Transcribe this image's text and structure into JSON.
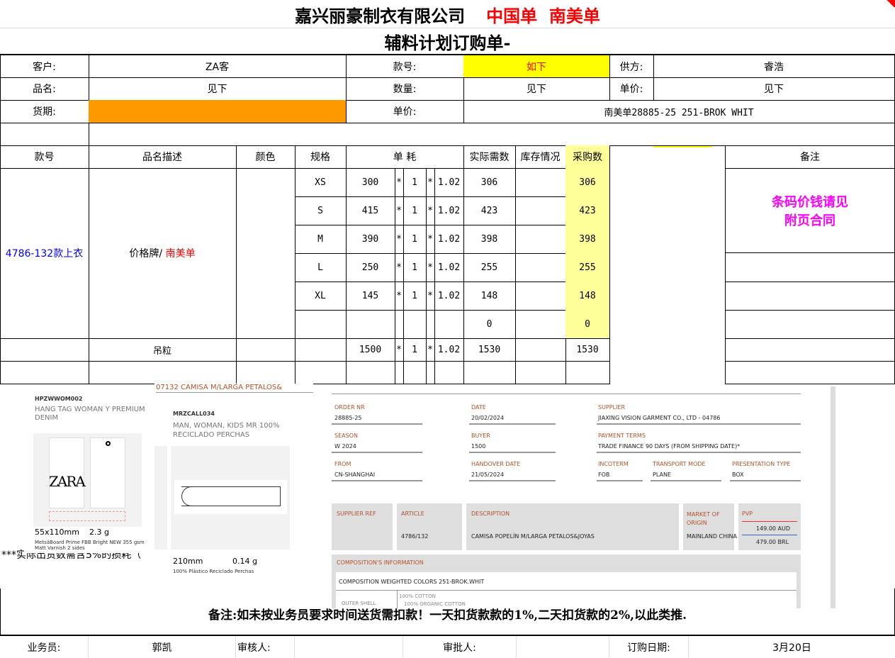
{
  "title": {
    "company": "嘉兴丽豪制衣有限公司",
    "tags": "中国单  南美单",
    "subtitle": "辅料计划订购单-"
  },
  "info": {
    "customer_label": "客户:",
    "customer": "ZA客",
    "style_label": "款号:",
    "style": "如下",
    "supplier_label": "供方:",
    "supplier": "睿浩",
    "product_label": "品名:",
    "product": "见下",
    "qty_label": "数量:",
    "qty": "见下",
    "price_label": "单价:",
    "price": "见下",
    "delivery_label": "货期:",
    "price2_label": "单价:",
    "price2": "南美单28885-25 251-BROK WHIT"
  },
  "colors": {
    "yellow": "#ffff00",
    "orange": "#ff9900",
    "light_yellow": "#ffff99",
    "red": "#ff0000",
    "blue": "#0000ff",
    "magenta": "#ff00ff"
  },
  "table": {
    "headers": {
      "style": "款号",
      "desc": "品名描述",
      "color": "颜色",
      "size": "规格",
      "usage": "单 耗",
      "actual": "实际需数",
      "stock": "库存情况",
      "purchase": "采购数",
      "remark": "备注"
    },
    "style_no": "4786-132款上衣",
    "desc_main": "价格牌/ ",
    "desc_red": "南美单",
    "remark_note": "条码价钱请见\n附页合同",
    "rows": [
      {
        "size": "XS",
        "qty": "300",
        "m1": "*",
        "f": "1",
        "m2": "*",
        "loss": "1.02",
        "actual": "306",
        "purchase": "306"
      },
      {
        "size": "S",
        "qty": "415",
        "m1": "*",
        "f": "1",
        "m2": "*",
        "loss": "1.02",
        "actual": "423",
        "purchase": "423"
      },
      {
        "size": "M",
        "qty": "390",
        "m1": "*",
        "f": "1",
        "m2": "*",
        "loss": "1.02",
        "actual": "398",
        "purchase": "398"
      },
      {
        "size": "L",
        "qty": "250",
        "m1": "*",
        "f": "1",
        "m2": "*",
        "loss": "1.02",
        "actual": "255",
        "purchase": "255"
      },
      {
        "size": "XL",
        "qty": "145",
        "m1": "*",
        "f": "1",
        "m2": "*",
        "loss": "1.02",
        "actual": "148",
        "purchase": "148"
      },
      {
        "size": "",
        "qty": "",
        "m1": "",
        "f": "",
        "m2": "",
        "loss": "",
        "actual": "0",
        "purchase": "0"
      }
    ],
    "extra": {
      "desc": "吊粒",
      "qty": "1500",
      "m1": "*",
      "f": "1",
      "m2": "*",
      "loss": "1.02",
      "actual": "1530",
      "purchase": "1530"
    }
  },
  "hidden_note": "***实际出货数需含5%的损耗（",
  "hangtag": {
    "code": "HPZWWOM002",
    "name": "HANG TAG WOMAN Y PREMIUM DENIM",
    "logo": "ZARA",
    "size": "55x110mm",
    "weight": "2.3 g",
    "material": "MetsäBoard Prime FBB Bright NEW 355 gsm Matt Varnish 2 sides"
  },
  "hanger": {
    "header": "07132 CAMISA M/LARGA PETALOS&",
    "code": "MRZCALL034",
    "name": "MAN, WOMAN, KIDS MR 100% RECICLADO PERCHAS",
    "size": "210mm",
    "weight": "0.14 g",
    "material": "100% Plástico Reciclado Perchas"
  },
  "order": {
    "order_nr_label": "ORDER NR",
    "order_nr": "28885-25",
    "date_label": "DATE",
    "date": "20/02/2024",
    "supplier_label": "SUPPLIER",
    "supplier": "JIAXING VISION GARMENT CO., LTD - 04786",
    "season_label": "SEASON",
    "season": "W 2024",
    "buyer_label": "BUYER",
    "buyer": "1500",
    "payment_label": "PAYMENT TERMS",
    "payment": "TRADE FINANCE 90 DAYS (FROM SHIPPING DATE)*",
    "from_label": "FROM",
    "from": "CN-SHANGHAI",
    "handover_label": "HANDOVER DATE",
    "handover": "21/05/2024",
    "incoterm_label": "INCOTERM",
    "incoterm": "FOB",
    "transport_label": "TRANSPORT MODE",
    "transport": "PLANE",
    "presentation_label": "PRESENTATION TYPE",
    "presentation": "BOX",
    "supref_label": "SUPPLIER REF",
    "article_label": "ARTICLE",
    "article": "4786/132",
    "desc_label": "DESCRIPTION",
    "desc": "CAMISA POPELÍN M/LARGA PETALOS&JOYAS",
    "market_label": "MARKET OF ORIGIN",
    "market": "MAINLAND CHINA",
    "pvp_label": "PVP",
    "pvp1": "149.00 AUD",
    "pvp2": "479.00 BRL",
    "comp_label": "COMPOSITION'S INFORMATION",
    "comp_weighted": "COMPOSITION WEIGHTED COLORS 251-BROK.WHIT",
    "outer_label": "OUTER SHELL",
    "outer1": "100% COTTON",
    "outer2": "100% ORGANIC COTTON"
  },
  "note": "备注:如未按业务员要求时间送货需扣款！一天扣货款款的1%,二天扣货款的2%,以此类推.",
  "footer": {
    "sales_label": "业务员:",
    "sales": "郭凯",
    "reviewer_label": "审核人:",
    "approver_label": "审批人:",
    "order_date_label": "订购日期:",
    "order_date": "3月20日"
  }
}
